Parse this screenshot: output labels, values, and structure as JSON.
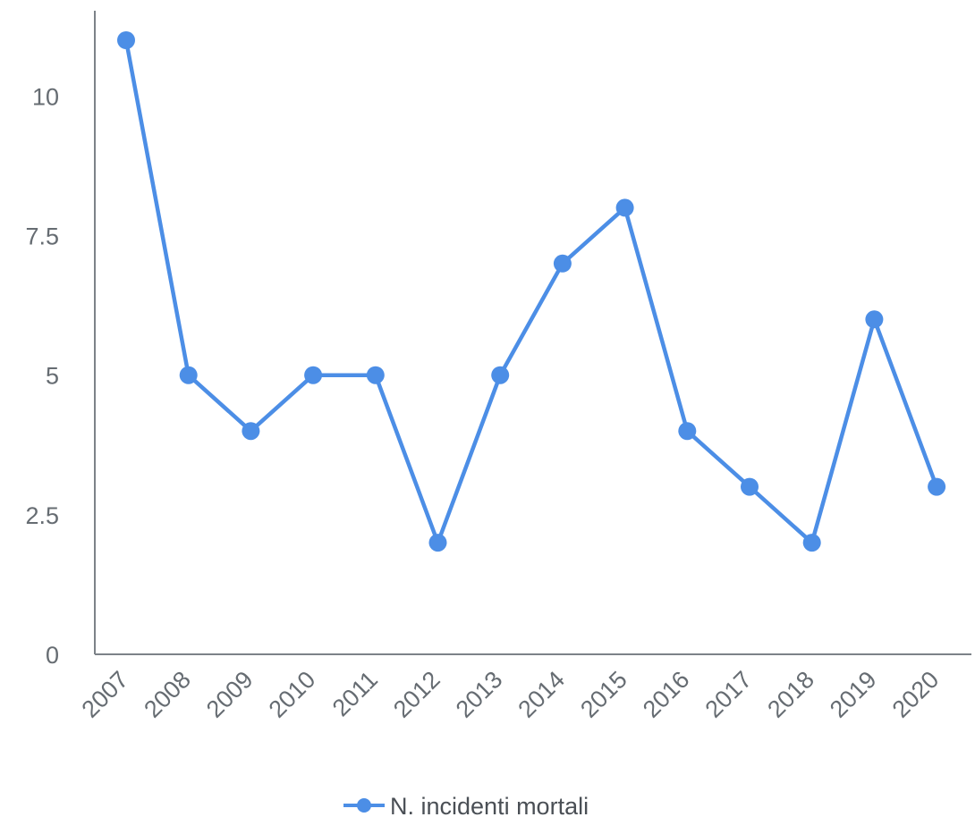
{
  "chart_data": {
    "type": "line",
    "title": "",
    "xlabel": "",
    "ylabel": "",
    "categories": [
      "2007",
      "2008",
      "2009",
      "2010",
      "2011",
      "2012",
      "2013",
      "2014",
      "2015",
      "2016",
      "2017",
      "2018",
      "2019",
      "2020"
    ],
    "series": [
      {
        "name": "N. incidenti mortali",
        "values": [
          11,
          5,
          4,
          5,
          5,
          2,
          5,
          7,
          8,
          4,
          3,
          2,
          6,
          3
        ],
        "color": "#4c8ee6"
      }
    ],
    "yticks": [
      "0",
      "2.5",
      "5",
      "7.5",
      "10"
    ],
    "ytick_values": [
      0,
      2.5,
      5,
      7.5,
      10
    ],
    "ylim": [
      0,
      11.7
    ],
    "grid": false,
    "legend_position": "bottom"
  }
}
